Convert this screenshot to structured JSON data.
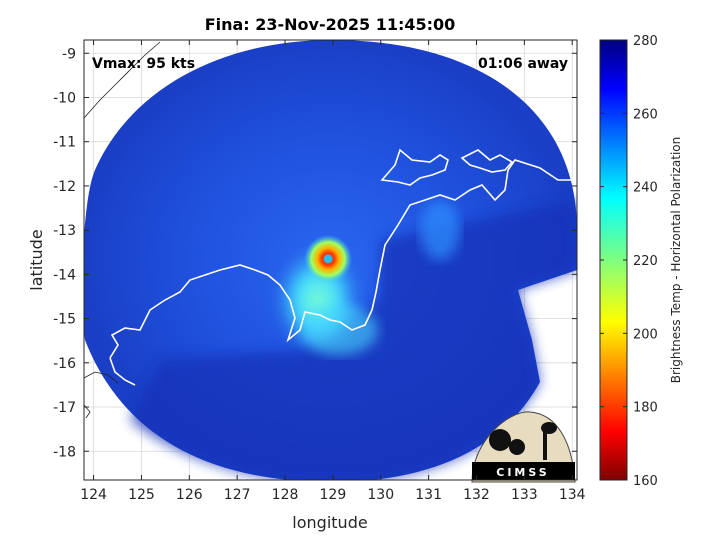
{
  "chart_data": {
    "type": "heatmap",
    "title": "Fina: 23-Nov-2025 11:45:00",
    "xlabel": "longitude",
    "ylabel": "latitude",
    "xlim": [
      123.8,
      134.1
    ],
    "ylim": [
      -18.65,
      -8.7
    ],
    "xticks": [
      124,
      125,
      126,
      127,
      128,
      129,
      130,
      131,
      132,
      133,
      134
    ],
    "yticks": [
      -9,
      -10,
      -11,
      -12,
      -13,
      -14,
      -15,
      -16,
      -17,
      -18
    ],
    "xtick_labels": [
      "124",
      "125",
      "126",
      "127",
      "128",
      "129",
      "130",
      "131",
      "132",
      "133",
      "134"
    ],
    "ytick_labels": [
      "-9",
      "-10",
      "-11",
      "-12",
      "-13",
      "-14",
      "-15",
      "-16",
      "-17",
      "-18"
    ],
    "grid": true,
    "annotations": {
      "left": "Vmax: 95 kts",
      "right": "01:06 away"
    },
    "colorbar": {
      "label": "Brightness Temp - Horizontal Polarization",
      "range": [
        160,
        280
      ],
      "ticks": [
        160,
        180,
        200,
        220,
        240,
        260,
        280
      ],
      "tick_labels": [
        "160",
        "180",
        "200",
        "220",
        "240",
        "260",
        "280"
      ],
      "colormap": "jet"
    },
    "storm_center": {
      "lon": 128.9,
      "lat": -13.65
    },
    "swath": {
      "center_lon": 128.9,
      "center_lat": -13.65,
      "radius_deg_lon": 5.1
    },
    "logo_text": "CIMSS"
  },
  "colors": {
    "background_tb": "#1c3fc8",
    "ocean_tb": "#1430b4",
    "coast": "#ffffff",
    "grid": "#d9d9d9"
  }
}
